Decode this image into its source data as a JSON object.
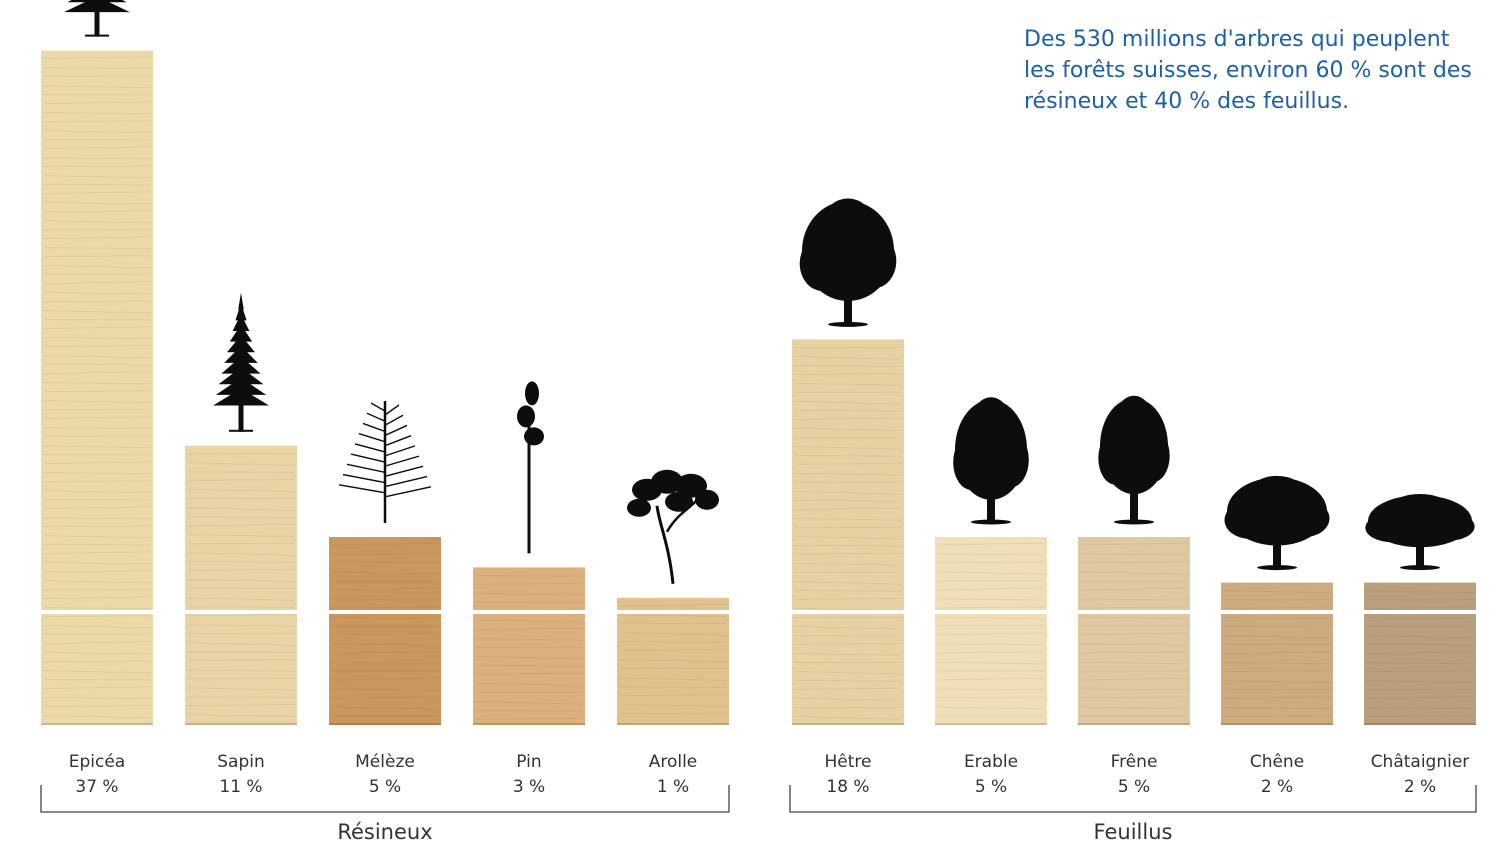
{
  "annotation": "Des 530 millions d'arbres qui peuplent les forêts suisses, environ 60 % sont des résineux et 40 % des feuillus.",
  "colors": {
    "text": "#333333",
    "annotation": "#1f5fa6",
    "tree": "#0d0d0d",
    "bracket": "#444444"
  },
  "chart_data": {
    "type": "bar",
    "unit": "%",
    "groups": [
      {
        "label": "Résineux",
        "categories": [
          "Epicéa",
          "Sapin",
          "Mélèze",
          "Pin",
          "Arolle"
        ]
      },
      {
        "label": "Feuillus",
        "categories": [
          "Hêtre",
          "Erable",
          "Frêne",
          "Chêne",
          "Châtaignier"
        ]
      }
    ],
    "categories": [
      "Epicéa",
      "Sapin",
      "Mélèze",
      "Pin",
      "Arolle",
      "Hêtre",
      "Erable",
      "Frêne",
      "Chêne",
      "Châtaignier"
    ],
    "values": [
      37,
      11,
      5,
      3,
      1,
      18,
      5,
      5,
      2,
      2
    ],
    "value_labels": [
      "37 %",
      "11 %",
      "5 %",
      "3 %",
      "1 %",
      "18 %",
      "5 %",
      "5 %",
      "2 %",
      "2 %"
    ],
    "tree_icons": [
      "spruce-tree-icon",
      "fir-tree-icon",
      "larch-tree-icon",
      "pine-tree-icon",
      "stone-pine-tree-icon",
      "beech-tree-icon",
      "maple-tree-icon",
      "ash-tree-icon",
      "oak-tree-icon",
      "chestnut-tree-icon"
    ],
    "wood_colors": [
      "#ecd9a8",
      "#e8d4a5",
      "#c9975c",
      "#dcb07c",
      "#e1c28f",
      "#e7d0a2",
      "#efdeb6",
      "#e0c9a0",
      "#cfac80",
      "#b99f7c"
    ],
    "axis": "none",
    "grid": false
  }
}
